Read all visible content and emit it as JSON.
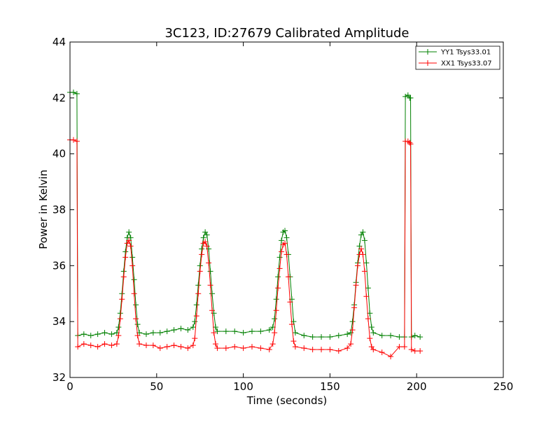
{
  "chart_data": {
    "type": "line",
    "title": "3C123, ID:27679 Calibrated Amplitude",
    "xlabel": "Time (seconds)",
    "ylabel": "Power in Kelvin",
    "xlim": [
      0,
      250
    ],
    "ylim": [
      32,
      44
    ],
    "xticks": [
      0,
      50,
      100,
      150,
      200,
      250
    ],
    "yticks": [
      32,
      34,
      36,
      38,
      40,
      42,
      44
    ],
    "grid": false,
    "legend_position": "top-right",
    "series": [
      {
        "name": "YY1 Tsys33.01",
        "color": "#008000",
        "marker": "+",
        "points": [
          [
            0,
            42.2
          ],
          [
            2,
            42.2
          ],
          [
            4,
            42.15
          ],
          [
            4.5,
            33.5
          ],
          [
            8,
            33.55
          ],
          [
            12,
            33.5
          ],
          [
            16,
            33.55
          ],
          [
            20,
            33.6
          ],
          [
            24,
            33.55
          ],
          [
            27,
            33.6
          ],
          [
            28,
            33.8
          ],
          [
            29,
            34.3
          ],
          [
            30,
            35.0
          ],
          [
            31,
            35.8
          ],
          [
            32,
            36.5
          ],
          [
            33,
            37.0
          ],
          [
            34,
            37.2
          ],
          [
            35,
            37.0
          ],
          [
            36,
            36.3
          ],
          [
            37,
            35.5
          ],
          [
            38,
            34.6
          ],
          [
            39,
            33.9
          ],
          [
            40,
            33.6
          ],
          [
            44,
            33.55
          ],
          [
            48,
            33.6
          ],
          [
            52,
            33.6
          ],
          [
            56,
            33.65
          ],
          [
            60,
            33.7
          ],
          [
            64,
            33.75
          ],
          [
            68,
            33.7
          ],
          [
            71,
            33.8
          ],
          [
            72,
            34.0
          ],
          [
            73,
            34.6
          ],
          [
            74,
            35.3
          ],
          [
            75,
            36.0
          ],
          [
            76,
            36.6
          ],
          [
            77,
            37.0
          ],
          [
            78,
            37.2
          ],
          [
            79,
            37.1
          ],
          [
            80,
            36.6
          ],
          [
            81,
            35.8
          ],
          [
            82,
            35.0
          ],
          [
            83,
            34.3
          ],
          [
            84,
            33.8
          ],
          [
            85,
            33.65
          ],
          [
            90,
            33.65
          ],
          [
            95,
            33.65
          ],
          [
            100,
            33.6
          ],
          [
            105,
            33.65
          ],
          [
            110,
            33.65
          ],
          [
            115,
            33.7
          ],
          [
            117,
            33.8
          ],
          [
            118,
            34.1
          ],
          [
            119,
            34.8
          ],
          [
            120,
            35.6
          ],
          [
            121,
            36.3
          ],
          [
            122,
            36.9
          ],
          [
            123,
            37.2
          ],
          [
            124,
            37.25
          ],
          [
            125,
            37.0
          ],
          [
            126,
            36.4
          ],
          [
            127,
            35.6
          ],
          [
            128,
            34.8
          ],
          [
            129,
            34.0
          ],
          [
            130,
            33.6
          ],
          [
            135,
            33.5
          ],
          [
            140,
            33.45
          ],
          [
            145,
            33.45
          ],
          [
            150,
            33.45
          ],
          [
            155,
            33.5
          ],
          [
            160,
            33.55
          ],
          [
            162,
            33.6
          ],
          [
            163,
            34.0
          ],
          [
            164,
            34.6
          ],
          [
            165,
            35.4
          ],
          [
            166,
            36.1
          ],
          [
            167,
            36.7
          ],
          [
            168,
            37.1
          ],
          [
            169,
            37.2
          ],
          [
            170,
            36.9
          ],
          [
            171,
            36.1
          ],
          [
            172,
            35.2
          ],
          [
            173,
            34.3
          ],
          [
            174,
            33.8
          ],
          [
            175,
            33.6
          ],
          [
            180,
            33.5
          ],
          [
            185,
            33.5
          ],
          [
            190,
            33.45
          ],
          [
            193,
            33.45
          ],
          [
            193.5,
            42.05
          ],
          [
            195,
            42.1
          ],
          [
            196,
            42.0
          ],
          [
            196.5,
            42.0
          ],
          [
            197,
            33.45
          ],
          [
            199,
            33.5
          ],
          [
            202,
            33.45
          ]
        ]
      },
      {
        "name": "XX1 Tsys33.07",
        "color": "#ff0000",
        "marker": "+",
        "points": [
          [
            0,
            40.5
          ],
          [
            2,
            40.5
          ],
          [
            4,
            40.45
          ],
          [
            4.5,
            33.1
          ],
          [
            8,
            33.2
          ],
          [
            12,
            33.15
          ],
          [
            16,
            33.1
          ],
          [
            20,
            33.2
          ],
          [
            24,
            33.15
          ],
          [
            27,
            33.2
          ],
          [
            28,
            33.5
          ],
          [
            29,
            34.1
          ],
          [
            30,
            34.8
          ],
          [
            31,
            35.6
          ],
          [
            32,
            36.3
          ],
          [
            33,
            36.8
          ],
          [
            34,
            36.9
          ],
          [
            35,
            36.7
          ],
          [
            36,
            36.0
          ],
          [
            37,
            35.0
          ],
          [
            38,
            34.1
          ],
          [
            39,
            33.5
          ],
          [
            40,
            33.2
          ],
          [
            44,
            33.15
          ],
          [
            48,
            33.15
          ],
          [
            52,
            33.05
          ],
          [
            56,
            33.1
          ],
          [
            60,
            33.15
          ],
          [
            64,
            33.1
          ],
          [
            68,
            33.05
          ],
          [
            71,
            33.15
          ],
          [
            72,
            33.4
          ],
          [
            73,
            34.2
          ],
          [
            74,
            35.0
          ],
          [
            75,
            35.8
          ],
          [
            76,
            36.4
          ],
          [
            77,
            36.8
          ],
          [
            78,
            36.85
          ],
          [
            79,
            36.7
          ],
          [
            80,
            36.1
          ],
          [
            81,
            35.3
          ],
          [
            82,
            34.4
          ],
          [
            83,
            33.6
          ],
          [
            84,
            33.2
          ],
          [
            85,
            33.05
          ],
          [
            90,
            33.05
          ],
          [
            95,
            33.1
          ],
          [
            100,
            33.05
          ],
          [
            105,
            33.1
          ],
          [
            110,
            33.05
          ],
          [
            115,
            33.0
          ],
          [
            117,
            33.2
          ],
          [
            118,
            33.6
          ],
          [
            119,
            34.4
          ],
          [
            120,
            35.2
          ],
          [
            121,
            35.9
          ],
          [
            122,
            36.5
          ],
          [
            123,
            36.75
          ],
          [
            124,
            36.8
          ],
          [
            125,
            36.4
          ],
          [
            126,
            35.6
          ],
          [
            127,
            34.7
          ],
          [
            128,
            33.9
          ],
          [
            129,
            33.3
          ],
          [
            130,
            33.1
          ],
          [
            135,
            33.05
          ],
          [
            140,
            33.0
          ],
          [
            145,
            33.0
          ],
          [
            150,
            33.0
          ],
          [
            155,
            32.95
          ],
          [
            160,
            33.05
          ],
          [
            162,
            33.2
          ],
          [
            163,
            33.7
          ],
          [
            164,
            34.5
          ],
          [
            165,
            35.3
          ],
          [
            166,
            36.0
          ],
          [
            167,
            36.4
          ],
          [
            168,
            36.6
          ],
          [
            169,
            36.4
          ],
          [
            170,
            35.8
          ],
          [
            171,
            34.9
          ],
          [
            172,
            34.1
          ],
          [
            173,
            33.4
          ],
          [
            174,
            33.1
          ],
          [
            175,
            33.0
          ],
          [
            180,
            32.9
          ],
          [
            185,
            32.75
          ],
          [
            190,
            33.1
          ],
          [
            193,
            33.1
          ],
          [
            193.5,
            40.45
          ],
          [
            195,
            40.45
          ],
          [
            196,
            40.4
          ],
          [
            196.5,
            40.35
          ],
          [
            197,
            33.0
          ],
          [
            199,
            32.95
          ],
          [
            202,
            32.95
          ]
        ]
      }
    ]
  }
}
